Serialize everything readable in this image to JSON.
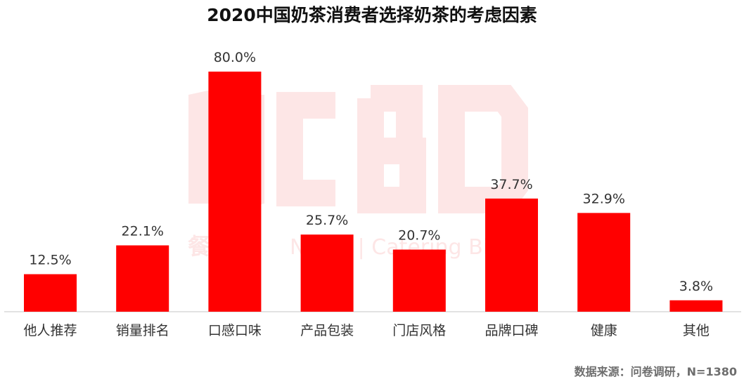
{
  "title": "2020中国奶茶消费者选择奶茶的考虑因素",
  "source": "数据来源：问卷调研，N=1380",
  "watermark": {
    "logo_text": "NCBD",
    "caption_cn": "餐宝典",
    "caption_en": "NCBD | Catering Big Data"
  },
  "colors": {
    "bar": "#ff0000",
    "axis": "#d9d9d9",
    "label": "#333333",
    "watermark": "#fde6e6"
  },
  "chart_data": {
    "type": "bar",
    "title": "2020中国奶茶消费者选择奶茶的考虑因素",
    "categories": [
      "他人推荐",
      "销量排名",
      "口感口味",
      "产品包装",
      "门店风格",
      "品牌口碑",
      "健康",
      "其他"
    ],
    "values": [
      12.5,
      22.1,
      80.0,
      25.7,
      20.7,
      37.7,
      32.9,
      3.8
    ],
    "value_labels": [
      "12.5%",
      "22.1%",
      "80.0%",
      "25.7%",
      "20.7%",
      "37.7%",
      "32.9%",
      "3.8%"
    ],
    "unit": "%",
    "xlabel": "",
    "ylabel": "",
    "ylim": [
      0,
      80
    ],
    "grid": false,
    "legend": "none"
  }
}
